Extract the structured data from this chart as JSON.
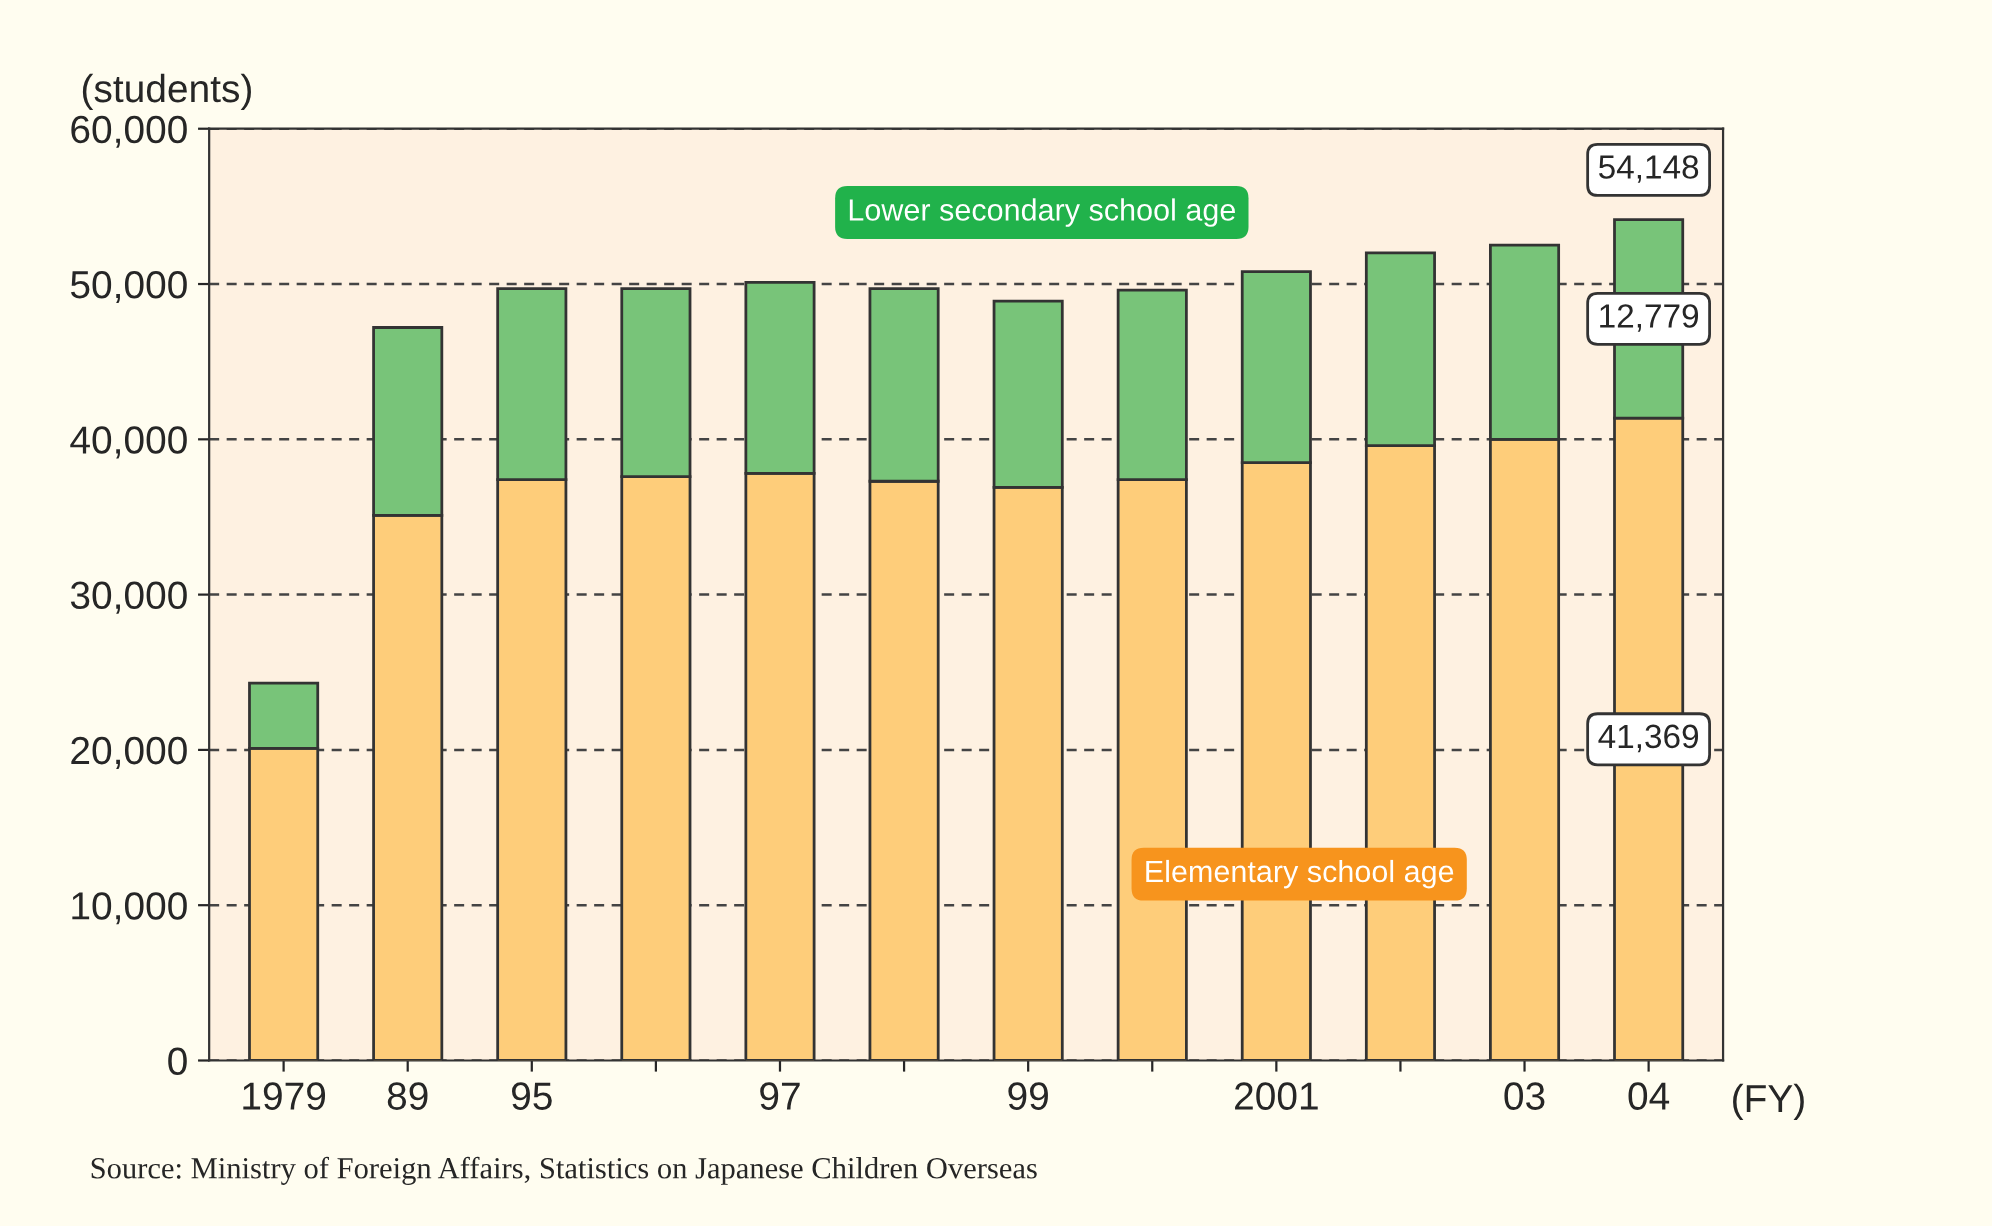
{
  "chart_data": {
    "type": "bar",
    "stacked": true,
    "ylabel": "(students)",
    "xlabel": "(FY)",
    "categories": [
      "1979",
      "89",
      "95",
      null,
      "97",
      null,
      "99",
      null,
      "2001",
      null,
      "03",
      "04"
    ],
    "series": [
      {
        "name": "Elementary school age",
        "color": "#fecd7a",
        "values": [
          20100,
          35100,
          37400,
          37600,
          37800,
          37300,
          36900,
          37400,
          38500,
          39600,
          40000,
          41369
        ],
        "value_labels": [
          null,
          null,
          null,
          null,
          null,
          null,
          null,
          null,
          null,
          null,
          null,
          "41,369"
        ]
      },
      {
        "name": "Lower secondary school age",
        "color": "#78c479",
        "values": [
          4200,
          12100,
          12300,
          12100,
          12300,
          12400,
          12000,
          12200,
          12300,
          12400,
          12500,
          12779
        ],
        "value_labels": [
          null,
          null,
          null,
          null,
          null,
          null,
          null,
          null,
          null,
          null,
          null,
          "12,779"
        ]
      }
    ],
    "totals": [
      null,
      null,
      null,
      null,
      null,
      null,
      null,
      null,
      null,
      null,
      null,
      "54,148"
    ],
    "ylim": [
      0,
      60000
    ],
    "yticks": [
      {
        "value": 0,
        "label": "0"
      },
      {
        "value": 10000,
        "label": "10,000"
      },
      {
        "value": 20000,
        "label": "20,000"
      },
      {
        "value": 30000,
        "label": "30,000"
      },
      {
        "value": 40000,
        "label": "40,000"
      },
      {
        "value": 50000,
        "label": "50,000"
      },
      {
        "value": 60000,
        "label": "60,000"
      }
    ],
    "grid": "y",
    "annotations": [
      "Source: Ministry of Foreign Affairs, Statistics on Japanese Children Overseas"
    ]
  }
}
